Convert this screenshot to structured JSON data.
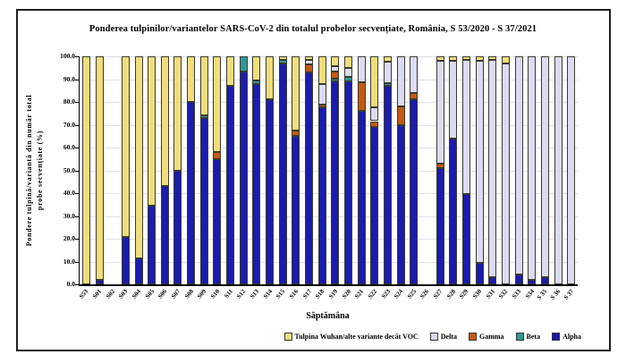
{
  "title": "Ponderea tulpinilor/variantelor SARS-CoV-2 din totalul probelor secvențiate, România, S 53/2020 - S 37/2021",
  "chart_data": {
    "type": "bar",
    "stacked": true,
    "title": "Ponderea tulpinilor/variantelor SARS-CoV-2 din totalul probelor secvențiate, România, S 53/2020 - S 37/2021",
    "xlabel": "Săptămâna",
    "ylabel": "Pondere tulpină/variantă din număr total probe secvențiate (%)",
    "ylabel_lines": [
      "Pondere tulpină/variantă din număr total",
      "probe secvențiate (%)"
    ],
    "ylim": [
      0,
      100
    ],
    "ytick_step": 10,
    "ytick_decimals": 1,
    "grid": true,
    "legend_position": "bottom",
    "categories": [
      "S53",
      "S01",
      "S02",
      "S03",
      "S04",
      "S05",
      "S06",
      "S07",
      "S08",
      "S09",
      "S10",
      "S11",
      "S12",
      "S13",
      "S14",
      "S15",
      "S16",
      "S17",
      "S18",
      "S19",
      "S20",
      "S21",
      "S22",
      "S23",
      "S24",
      "S25",
      "S26",
      "S27",
      "S28",
      "S29",
      "S30",
      "S31",
      "S32",
      "S33",
      "S34",
      "S 35",
      "S 36",
      "S 37"
    ],
    "series": [
      {
        "name": "Alpha",
        "color": "#1b1bae",
        "values": [
          0,
          2,
          0,
          21,
          11.5,
          34.5,
          43,
          50,
          80,
          73,
          55,
          87,
          93.5,
          88,
          81,
          97,
          65,
          93,
          77.5,
          89,
          89,
          76,
          69,
          87,
          70,
          81.3,
          0,
          51,
          64,
          39.5,
          9.5,
          3,
          0,
          4.5,
          2,
          3,
          0,
          0
        ]
      },
      {
        "name": "Beta",
        "color": "#2e9a98",
        "values": [
          0,
          0,
          0,
          0,
          0,
          0,
          0,
          0,
          0,
          1,
          0,
          0,
          6.5,
          1.3,
          0,
          1.5,
          0,
          0,
          0,
          1.3,
          2,
          0,
          0,
          1.3,
          0,
          0,
          0,
          0,
          0,
          0,
          0,
          0,
          0,
          0,
          0,
          0,
          0,
          0
        ]
      },
      {
        "name": "Gamma",
        "color": "#c55a11",
        "values": [
          0,
          0,
          0,
          0,
          0,
          0,
          0,
          0,
          0,
          0,
          3,
          0,
          0,
          0,
          0,
          0,
          2.5,
          3.5,
          1.5,
          3,
          0,
          12.5,
          2.6,
          0,
          8,
          2.7,
          0,
          2,
          0,
          0,
          0,
          0,
          0,
          0,
          0,
          0,
          0,
          0
        ]
      },
      {
        "name": "Delta",
        "color": "#dbdbf2",
        "values": [
          0,
          0,
          0,
          0,
          0,
          0,
          0,
          0,
          0,
          0,
          0,
          0,
          0,
          0,
          0,
          0,
          0,
          2,
          9,
          2.3,
          4,
          11.5,
          5.9,
          9.2,
          22,
          16,
          0,
          45,
          34,
          59,
          88.5,
          95.5,
          97,
          95.5,
          98,
          97,
          100,
          100
        ]
      },
      {
        "name": "Tulpina Wuhan/alte variante decât VOC",
        "color": "#f0de7c",
        "values": [
          100,
          98,
          0,
          79,
          88.5,
          65.5,
          57,
          50,
          20,
          26,
          42,
          13,
          0,
          10.7,
          19,
          1.5,
          32.5,
          1.5,
          12,
          4.4,
          5,
          0,
          22.5,
          2.5,
          0,
          0,
          0,
          2,
          2,
          1.5,
          2,
          1.5,
          3,
          0,
          0,
          0,
          0,
          0
        ]
      }
    ],
    "legend_order": [
      "Tulpina Wuhan/alte variante decât VOC",
      "Delta",
      "Gamma",
      "Beta",
      "Alpha"
    ]
  }
}
